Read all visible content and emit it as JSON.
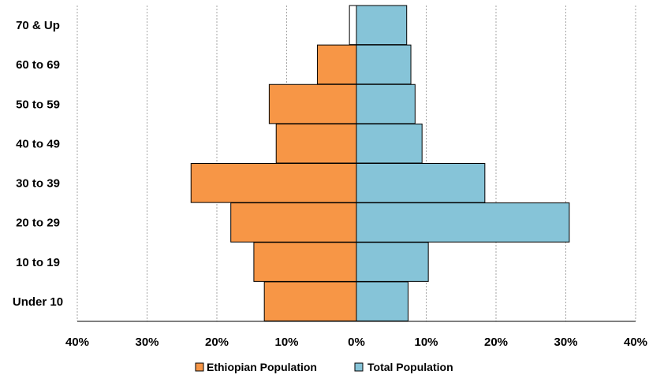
{
  "chart_data": {
    "type": "bar",
    "orientation": "horizontal",
    "layout": "population-pyramid",
    "categories": [
      "Under 10",
      "10 to 19",
      "20 to 29",
      "30 to 39",
      "40 to 49",
      "50 to 59",
      "60 to 69",
      "70 & Up"
    ],
    "series": [
      {
        "name": "Ethiopian Population",
        "color": "#f79646",
        "side": "left",
        "values": [
          13.2,
          14.7,
          18.0,
          23.7,
          11.5,
          12.5,
          5.6,
          1.0
        ]
      },
      {
        "name": "Total Population",
        "color": "#86c4d8",
        "side": "right",
        "values": [
          7.4,
          10.3,
          30.5,
          18.4,
          9.4,
          8.4,
          7.8,
          7.2
        ]
      }
    ],
    "x_ticks": [
      "40%",
      "30%",
      "20%",
      "10%",
      "0%",
      "10%",
      "20%",
      "30%",
      "40%"
    ],
    "xlim": [
      -40,
      40
    ],
    "grid": {
      "vertical": true,
      "style": "dotted"
    },
    "legend": "bottom"
  }
}
